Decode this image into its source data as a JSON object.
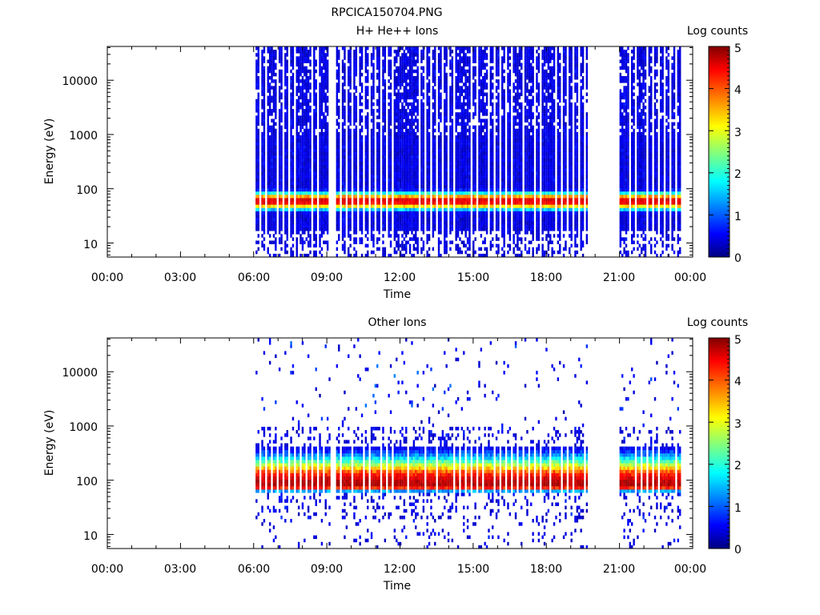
{
  "page_title": "RPCICA150704.PNG",
  "colorbar_ticks": [
    "0",
    "1",
    "2",
    "3",
    "4",
    "5"
  ],
  "chart_data": [
    {
      "type": "heatmap",
      "title": "H+ He++ Ions",
      "xlabel": "Time",
      "ylabel": "Energy (eV)",
      "colorbar_label": "Log counts",
      "x_ticks": [
        "00:00",
        "03:00",
        "06:00",
        "09:00",
        "12:00",
        "15:00",
        "18:00",
        "21:00",
        "00:00"
      ],
      "y_ticks": [
        "10",
        "100",
        "1000",
        "10000"
      ],
      "xlim_hours": [
        0,
        24
      ],
      "ylim_eV": [
        5.5,
        42000
      ],
      "y_scale": "log",
      "color_range": [
        0,
        5
      ],
      "colormap": [
        "#000080",
        "#0000ff",
        "#00ffff",
        "#ffff00",
        "#ff0000",
        "#800000"
      ],
      "data_intervals_hours": [
        [
          6.0,
          9.1
        ],
        [
          9.3,
          19.7
        ],
        [
          21.0,
          23.6
        ]
      ],
      "peak_energy_eV": 60,
      "peak_log_counts": 4.3,
      "background_log_counts": 0.6
    },
    {
      "type": "heatmap",
      "title": "Other Ions",
      "xlabel": "Time",
      "ylabel": "Energy (eV)",
      "colorbar_label": "Log counts",
      "x_ticks": [
        "00:00",
        "03:00",
        "06:00",
        "09:00",
        "12:00",
        "15:00",
        "18:00",
        "21:00",
        "00:00"
      ],
      "y_ticks": [
        "10",
        "100",
        "1000",
        "10000"
      ],
      "xlim_hours": [
        0,
        24
      ],
      "ylim_eV": [
        5.5,
        42000
      ],
      "y_scale": "log",
      "color_range": [
        0,
        5
      ],
      "colormap": [
        "#000080",
        "#0000ff",
        "#00ffff",
        "#ffff00",
        "#ff0000",
        "#800000"
      ],
      "data_intervals_hours": [
        [
          6.0,
          9.1
        ],
        [
          9.3,
          19.7
        ],
        [
          21.0,
          23.6
        ]
      ],
      "peak_energy_eV": 80,
      "peak_log_counts": 4.6,
      "background_log_counts": 0.5
    }
  ]
}
